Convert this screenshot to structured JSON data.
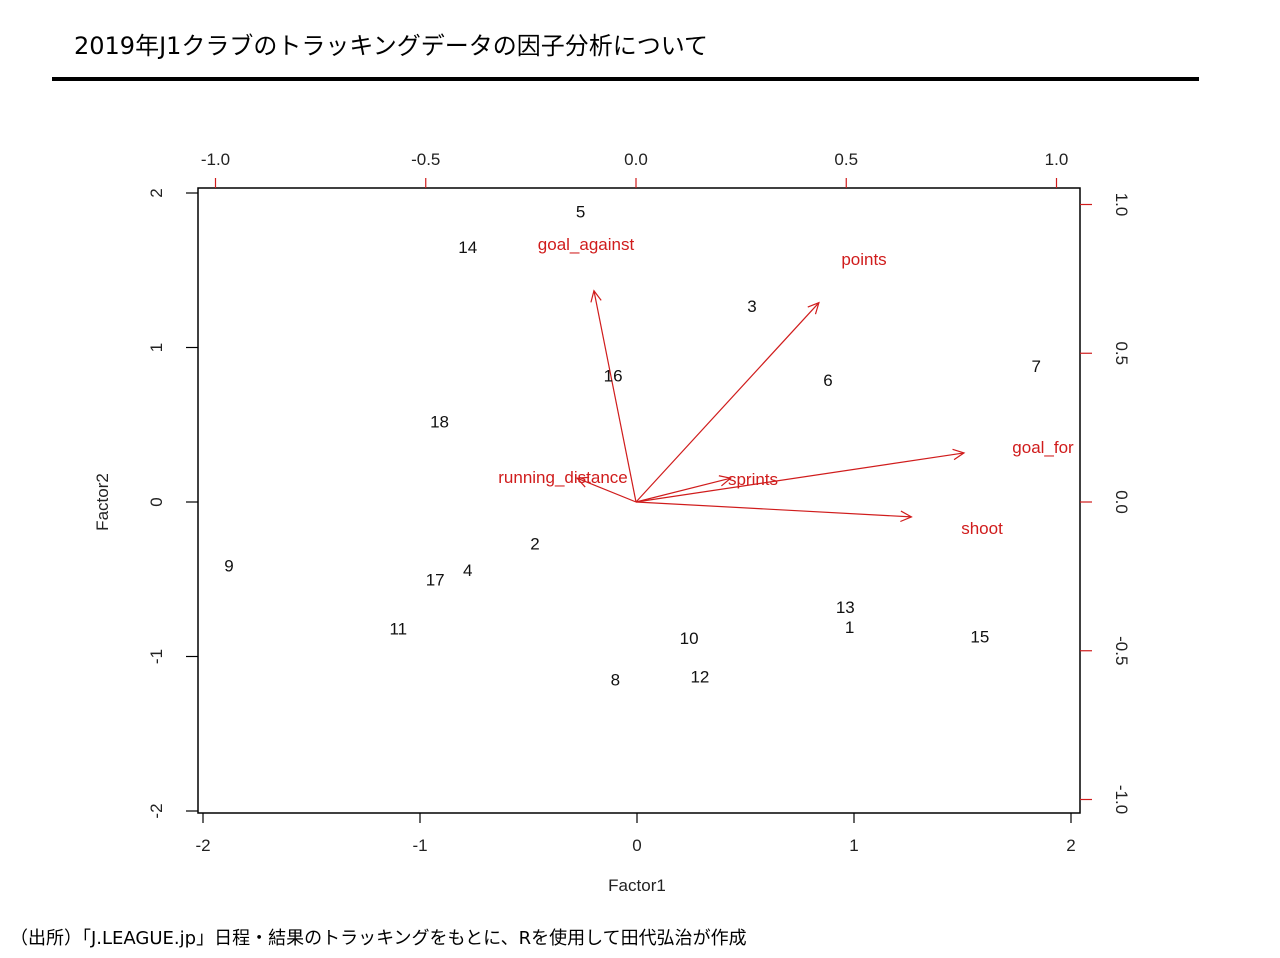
{
  "header": {
    "title": "2019年J1クラブのトラッキングデータの因子分析について"
  },
  "footer": {
    "source": "（出所）「J.LEAGUE.jp」日程・結果のトラッキングをもとに、Rを使用して田代弘治が作成"
  },
  "colors": {
    "points": "#111111",
    "loadings": "#d01c1c",
    "axes": "#000000"
  },
  "chart_data": {
    "type": "scatter",
    "subtype": "biplot",
    "title": "2019年J1クラブのトラッキングデータの因子分析について",
    "xlabel": "Factor1",
    "ylabel": "Factor2",
    "xlim": [
      -2,
      2
    ],
    "ylim": [
      -2,
      2
    ],
    "x_ticks": [
      "-2",
      "-1",
      "0",
      "1",
      "2"
    ],
    "y_ticks": [
      "-2",
      "-1",
      "0",
      "1",
      "2"
    ],
    "top_axis_ticks": [
      "-1.0",
      "-0.5",
      "0.0",
      "0.5",
      "1.0"
    ],
    "right_axis_ticks": [
      "-1.0",
      "-0.5",
      "0.0",
      "0.5",
      "1.0"
    ],
    "secondary_lim": [
      -1,
      1
    ],
    "grid": false,
    "legend": "none",
    "scores": [
      {
        "label": "1",
        "x": 0.98,
        "y": -0.81
      },
      {
        "label": "2",
        "x": -0.47,
        "y": -0.27
      },
      {
        "label": "3",
        "x": 0.53,
        "y": 1.27
      },
      {
        "label": "4",
        "x": -0.78,
        "y": -0.44
      },
      {
        "label": "5",
        "x": -0.26,
        "y": 1.88
      },
      {
        "label": "6",
        "x": 0.88,
        "y": 0.79
      },
      {
        "label": "7",
        "x": 1.84,
        "y": 0.88
      },
      {
        "label": "8",
        "x": -0.1,
        "y": -1.15
      },
      {
        "label": "9",
        "x": -1.88,
        "y": -0.41
      },
      {
        "label": "10",
        "x": 0.24,
        "y": -0.88
      },
      {
        "label": "11",
        "x": -1.1,
        "y": -0.82
      },
      {
        "label": "12",
        "x": 0.29,
        "y": -1.13
      },
      {
        "label": "13",
        "x": 0.96,
        "y": -0.68
      },
      {
        "label": "14",
        "x": -0.78,
        "y": 1.65
      },
      {
        "label": "15",
        "x": 1.58,
        "y": -0.87
      },
      {
        "label": "16",
        "x": -0.11,
        "y": 0.82
      },
      {
        "label": "17",
        "x": -0.93,
        "y": -0.5
      },
      {
        "label": "18",
        "x": -0.91,
        "y": 0.52
      }
    ],
    "loadings": [
      {
        "label": "goal_against",
        "x": -0.1,
        "y": 0.71
      },
      {
        "label": "points",
        "x": 0.435,
        "y": 0.67
      },
      {
        "label": "running_distance",
        "x": -0.14,
        "y": 0.08
      },
      {
        "label": "sprints",
        "x": 0.225,
        "y": 0.08
      },
      {
        "label": "goal_for",
        "x": 0.78,
        "y": 0.165,
        "displayed_label": "goal_fo"
      },
      {
        "label": "shoot",
        "x": 0.655,
        "y": -0.05
      }
    ]
  }
}
